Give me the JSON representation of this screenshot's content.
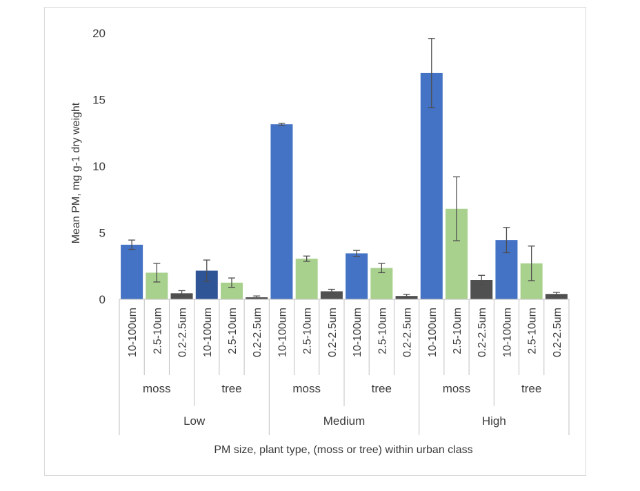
{
  "chart_data": {
    "type": "bar",
    "title": "",
    "ylabel": "Mean PM, mg g-1 dry weight",
    "xlabel": "PM size, plant type, (moss or tree) within urban class",
    "ylim": [
      0,
      20
    ],
    "yticks": [
      0,
      5,
      10,
      15,
      20
    ],
    "grid": false,
    "legend": "none",
    "urban_classes": [
      {
        "name": "Low",
        "plant_types": [
          {
            "name": "moss",
            "bars": [
              {
                "size": "10-100um",
                "value": 4.1,
                "error": 0.35,
                "color": "#4472c4"
              },
              {
                "size": "2.5-10um",
                "value": 2.0,
                "error": 0.7,
                "color": "#a9d18e"
              },
              {
                "size": "0.2-2.5um",
                "value": 0.45,
                "error": 0.2,
                "color": "#505050"
              }
            ]
          },
          {
            "name": "tree",
            "bars": [
              {
                "size": "10-100um",
                "value": 2.15,
                "error": 0.8,
                "color": "#2f5597"
              },
              {
                "size": "2.5-10um",
                "value": 1.25,
                "error": 0.35,
                "color": "#a9d18e"
              },
              {
                "size": "0.2-2.5um",
                "value": 0.15,
                "error": 0.1,
                "color": "#505050"
              }
            ]
          }
        ]
      },
      {
        "name": "Medium",
        "plant_types": [
          {
            "name": "moss",
            "bars": [
              {
                "size": "10-100um",
                "value": 13.15,
                "error": 0.08,
                "color": "#4472c4"
              },
              {
                "size": "2.5-10um",
                "value": 3.05,
                "error": 0.2,
                "color": "#a9d18e"
              },
              {
                "size": "0.2-2.5um",
                "value": 0.6,
                "error": 0.15,
                "color": "#505050"
              }
            ]
          },
          {
            "name": "tree",
            "bars": [
              {
                "size": "10-100um",
                "value": 3.45,
                "error": 0.22,
                "color": "#4472c4"
              },
              {
                "size": "2.5-10um",
                "value": 2.35,
                "error": 0.35,
                "color": "#a9d18e"
              },
              {
                "size": "0.2-2.5um",
                "value": 0.25,
                "error": 0.12,
                "color": "#505050"
              }
            ]
          }
        ]
      },
      {
        "name": "High",
        "plant_types": [
          {
            "name": "moss",
            "bars": [
              {
                "size": "10-100um",
                "value": 17.0,
                "error": 2.6,
                "color": "#4472c4"
              },
              {
                "size": "2.5-10um",
                "value": 6.8,
                "error": 2.4,
                "color": "#a9d18e"
              },
              {
                "size": "0.2-2.5um",
                "value": 1.45,
                "error": 0.35,
                "color": "#505050"
              }
            ]
          },
          {
            "name": "tree",
            "bars": [
              {
                "size": "10-100um",
                "value": 4.45,
                "error": 0.95,
                "color": "#4472c4"
              },
              {
                "size": "2.5-10um",
                "value": 2.7,
                "error": 1.3,
                "color": "#a9d18e"
              },
              {
                "size": "0.2-2.5um",
                "value": 0.4,
                "error": 0.12,
                "color": "#505050"
              }
            ]
          }
        ]
      }
    ]
  },
  "colors": {
    "axis": "#bfbfbf",
    "error_bar": "#4d4d4d",
    "text": "#3a3a3a"
  }
}
